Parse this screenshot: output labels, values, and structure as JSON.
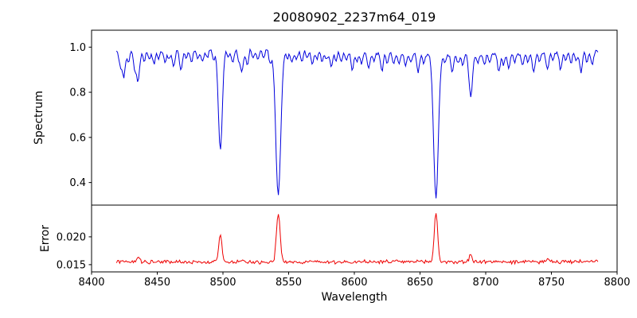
{
  "chart_data": {
    "type": "line",
    "title": "20080902_2237m64_019",
    "xlabel": "Wavelength",
    "xlim": [
      8400,
      8800
    ],
    "xticks": [
      8400,
      8450,
      8500,
      8550,
      8600,
      8650,
      8700,
      8750,
      8800
    ],
    "grid": false,
    "legend": "none",
    "panels": [
      {
        "name": "spectrum",
        "ylabel": "Spectrum",
        "color": "#0000dd",
        "ylim": [
          0.3,
          1.075
        ],
        "yticks": [
          {
            "value": 1.0,
            "label": "1.0"
          },
          {
            "value": 0.8,
            "label": "0.8"
          },
          {
            "value": 0.6,
            "label": "0.6"
          },
          {
            "value": 0.4,
            "label": "0.4"
          }
        ]
      },
      {
        "name": "error",
        "ylabel": "Error",
        "color": "#ee0000",
        "ylim": [
          0.0137,
          0.0257
        ],
        "yticks": [
          {
            "value": 0.02,
            "label": "0.020"
          },
          {
            "value": 0.015,
            "label": "0.015"
          }
        ]
      }
    ],
    "spectrum": {
      "x_start": 8419,
      "x_end": 8786,
      "x_step": 0.8,
      "continuum": 0.98,
      "continuum_wave_amp": 0.012,
      "noise_amp": 0.012,
      "absorption_lines": [
        [
          8422,
          0.07,
          1.0
        ],
        [
          8424.5,
          0.11,
          1.1
        ],
        [
          8428,
          0.05,
          0.9
        ],
        [
          8433,
          0.09,
          1.0
        ],
        [
          8435.5,
          0.13,
          1.1
        ],
        [
          8440,
          0.05,
          0.9
        ],
        [
          8444,
          0.04,
          0.9
        ],
        [
          8447.5,
          0.06,
          1.0
        ],
        [
          8451,
          0.04,
          0.9
        ],
        [
          8456,
          0.05,
          1.0
        ],
        [
          8459,
          0.04,
          0.9
        ],
        [
          8462.5,
          0.08,
          1.0
        ],
        [
          8468,
          0.09,
          1.1
        ],
        [
          8472,
          0.04,
          0.9
        ],
        [
          8476,
          0.06,
          1.0
        ],
        [
          8481,
          0.04,
          0.9
        ],
        [
          8484.5,
          0.06,
          1.0
        ],
        [
          8488,
          0.04,
          0.9
        ],
        [
          8493,
          0.05,
          0.9
        ],
        [
          8498.02,
          0.45,
          1.5
        ],
        [
          8504,
          0.04,
          0.9
        ],
        [
          8507.5,
          0.06,
          1.0
        ],
        [
          8512,
          0.05,
          0.9
        ],
        [
          8514.5,
          0.1,
          1.1
        ],
        [
          8518.5,
          0.07,
          1.0
        ],
        [
          8523,
          0.04,
          0.9
        ],
        [
          8526.5,
          0.05,
          0.9
        ],
        [
          8531,
          0.04,
          0.9
        ],
        [
          8536,
          0.06,
          1.0
        ],
        [
          8542.09,
          0.645,
          1.9
        ],
        [
          8549,
          0.04,
          0.9
        ],
        [
          8552.5,
          0.06,
          1.0
        ],
        [
          8556,
          0.04,
          0.9
        ],
        [
          8560,
          0.05,
          0.9
        ],
        [
          8564,
          0.04,
          0.9
        ],
        [
          8568,
          0.06,
          1.0
        ],
        [
          8571.5,
          0.04,
          0.9
        ],
        [
          8575.5,
          0.05,
          0.9
        ],
        [
          8579,
          0.04,
          0.9
        ],
        [
          8582.5,
          0.07,
          1.0
        ],
        [
          8586,
          0.04,
          0.9
        ],
        [
          8590,
          0.05,
          0.9
        ],
        [
          8594,
          0.04,
          0.9
        ],
        [
          8598.5,
          0.08,
          1.0
        ],
        [
          8602,
          0.04,
          0.9
        ],
        [
          8605.5,
          0.05,
          0.9
        ],
        [
          8611,
          0.07,
          1.0
        ],
        [
          8615,
          0.04,
          0.9
        ],
        [
          8621,
          0.08,
          1.0
        ],
        [
          8625,
          0.04,
          0.9
        ],
        [
          8630,
          0.05,
          0.9
        ],
        [
          8634,
          0.04,
          0.9
        ],
        [
          8639,
          0.05,
          0.9
        ],
        [
          8643,
          0.04,
          0.9
        ],
        [
          8648.5,
          0.08,
          1.0
        ],
        [
          8653,
          0.04,
          0.9
        ],
        [
          8662.14,
          0.635,
          1.8
        ],
        [
          8669,
          0.04,
          0.9
        ],
        [
          8674.5,
          0.08,
          1.0
        ],
        [
          8679,
          0.04,
          0.9
        ],
        [
          8682.5,
          0.05,
          0.9
        ],
        [
          8688.6,
          0.19,
          1.3
        ],
        [
          8694,
          0.04,
          0.9
        ],
        [
          8699,
          0.05,
          0.9
        ],
        [
          8703,
          0.04,
          0.9
        ],
        [
          8710,
          0.08,
          1.0
        ],
        [
          8713.5,
          0.05,
          0.9
        ],
        [
          8717.5,
          0.07,
          1.0
        ],
        [
          8722,
          0.04,
          0.9
        ],
        [
          8728,
          0.05,
          0.9
        ],
        [
          8732,
          0.04,
          0.9
        ],
        [
          8736.5,
          0.09,
          1.0
        ],
        [
          8741,
          0.04,
          0.9
        ],
        [
          8747,
          0.08,
          1.0
        ],
        [
          8751,
          0.04,
          0.9
        ],
        [
          8757,
          0.08,
          1.0
        ],
        [
          8761,
          0.04,
          0.9
        ],
        [
          8765,
          0.05,
          0.9
        ],
        [
          8769,
          0.04,
          0.9
        ],
        [
          8772.5,
          0.09,
          1.0
        ],
        [
          8777,
          0.05,
          0.9
        ],
        [
          8781,
          0.06,
          1.0
        ]
      ]
    },
    "error": {
      "baseline": 0.0155,
      "noise_amp": 0.0006,
      "spikes": [
        [
          8435.5,
          0.0008,
          1.1
        ],
        [
          8498.02,
          0.0048,
          1.2
        ],
        [
          8514.5,
          0.0005,
          1.0
        ],
        [
          8542.09,
          0.0086,
          1.4
        ],
        [
          8662.14,
          0.0089,
          1.3
        ],
        [
          8688.6,
          0.0013,
          1.1
        ],
        [
          8747,
          0.0004,
          1.0
        ]
      ]
    }
  }
}
